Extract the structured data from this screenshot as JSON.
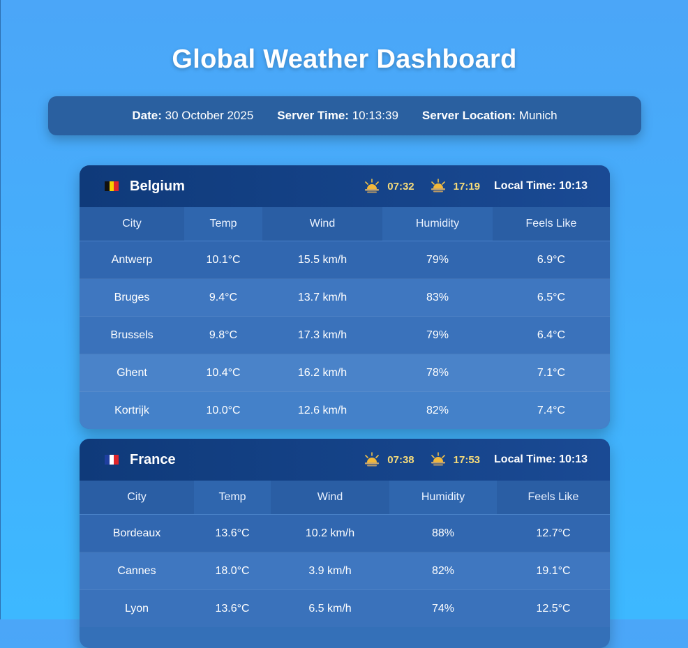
{
  "title": "Global Weather Dashboard",
  "info": {
    "date_label": "Date:",
    "date_value": "30 October 2025",
    "time_label": "Server Time:",
    "time_value": "10:13:39",
    "location_label": "Server Location:",
    "location_value": "Munich"
  },
  "headers": [
    "City",
    "Temp",
    "Wind",
    "Humidity",
    "Feels Like"
  ],
  "countries": [
    {
      "name": "Belgium",
      "flag_colors": [
        "#111111",
        "#f5d000",
        "#e0252b"
      ],
      "sunrise": "07:32",
      "sunset": "17:19",
      "local_time": "Local Time: 10:13",
      "rows": [
        [
          "Antwerp",
          "10.1°C",
          "15.5 km/h",
          "79%",
          "6.9°C"
        ],
        [
          "Bruges",
          "9.4°C",
          "13.7 km/h",
          "83%",
          "6.5°C"
        ],
        [
          "Brussels",
          "9.8°C",
          "17.3 km/h",
          "79%",
          "6.4°C"
        ],
        [
          "Ghent",
          "10.4°C",
          "16.2 km/h",
          "78%",
          "7.1°C"
        ],
        [
          "Kortrijk",
          "10.0°C",
          "12.6 km/h",
          "82%",
          "7.4°C"
        ]
      ]
    },
    {
      "name": "France",
      "flag_colors": [
        "#1f3fa0",
        "#ffffff",
        "#e0252b"
      ],
      "sunrise": "07:38",
      "sunset": "17:53",
      "local_time": "Local Time: 10:13",
      "rows": [
        [
          "Bordeaux",
          "13.6°C",
          "10.2 km/h",
          "88%",
          "12.7°C"
        ],
        [
          "Cannes",
          "18.0°C",
          "3.9 km/h",
          "82%",
          "19.1°C"
        ],
        [
          "Lyon",
          "13.6°C",
          "6.5 km/h",
          "74%",
          "12.5°C"
        ]
      ]
    }
  ]
}
